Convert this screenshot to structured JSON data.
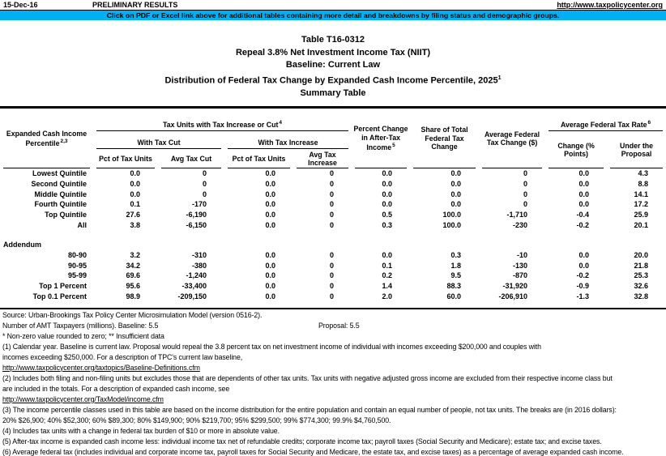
{
  "topbar": {
    "date": "15-Dec-16",
    "preliminary": "PRELIMINARY RESULTS",
    "url": "http://www.taxpolicycenter.org"
  },
  "banner": {
    "text": "Click on PDF or Excel link above for additional tables containing more detail and breakdowns by filing status and demographic groups.",
    "color": "#00B0F0"
  },
  "title": {
    "line1": "Table T16-0312",
    "line2": "Repeal 3.8% Net Investment Income Tax (NIIT)",
    "line3": "Baseline: Current Law",
    "line4": "Distribution of Federal Tax Change by Expanded Cash Income Percentile, 2025",
    "line4_sup": "1",
    "line5": "Summary Table"
  },
  "table": {
    "stub_header": "Expanded Cash Income Percentile",
    "stub_sup": "2,3",
    "group1": "Tax Units with Tax Increase or Cut",
    "group1_sup": "4",
    "group1a": "With Tax Cut",
    "group1b": "With Tax Increase",
    "col_pct_units_cut": "Pct of Tax Units",
    "col_avg_cut": "Avg Tax Cut",
    "col_pct_units_inc": "Pct of Tax Units",
    "col_avg_inc": "Avg Tax Increase",
    "col_pct_change": "Percent Change in After-Tax Income",
    "col_pct_change_sup": "5",
    "col_share": "Share of Total Federal Tax Change",
    "col_avg_change": "Average Federal Tax Change ($)",
    "group2": "Average Federal Tax Rate",
    "group2_sup": "6",
    "col_rate_change": "Change (% Points)",
    "col_rate_under": "Under the Proposal",
    "rows": [
      {
        "label": "Lowest Quintile",
        "values": [
          "0.0",
          "0",
          "0.0",
          "0",
          "0.0",
          "0.0",
          "0",
          "0.0",
          "4.3"
        ]
      },
      {
        "label": "Second Quintile",
        "values": [
          "0.0",
          "0",
          "0.0",
          "0",
          "0.0",
          "0.0",
          "0",
          "0.0",
          "8.8"
        ]
      },
      {
        "label": "Middle Quintile",
        "values": [
          "0.0",
          "0",
          "0.0",
          "0",
          "0.0",
          "0.0",
          "0",
          "0.0",
          "14.1"
        ]
      },
      {
        "label": "Fourth Quintile",
        "values": [
          "0.1",
          "-170",
          "0.0",
          "0",
          "0.0",
          "0.0",
          "0",
          "0.0",
          "17.2"
        ]
      },
      {
        "label": "Top Quintile",
        "values": [
          "27.6",
          "-6,190",
          "0.0",
          "0",
          "0.5",
          "100.0",
          "-1,710",
          "-0.4",
          "25.9"
        ]
      },
      {
        "label": "All",
        "values": [
          "3.8",
          "-6,150",
          "0.0",
          "0",
          "0.3",
          "100.0",
          "-230",
          "-0.2",
          "20.1"
        ]
      }
    ],
    "addendum_label": "Addendum",
    "addendum_rows": [
      {
        "label": "80-90",
        "values": [
          "3.2",
          "-310",
          "0.0",
          "0",
          "0.0",
          "0.3",
          "-10",
          "0.0",
          "20.0"
        ]
      },
      {
        "label": "90-95",
        "values": [
          "34.2",
          "-380",
          "0.0",
          "0",
          "0.1",
          "1.8",
          "-130",
          "0.0",
          "21.8"
        ]
      },
      {
        "label": "95-99",
        "values": [
          "69.6",
          "-1,240",
          "0.0",
          "0",
          "0.2",
          "9.5",
          "-870",
          "-0.2",
          "25.3"
        ]
      },
      {
        "label": "Top 1 Percent",
        "values": [
          "95.6",
          "-33,400",
          "0.0",
          "0",
          "1.4",
          "88.3",
          "-31,920",
          "-0.9",
          "32.6"
        ]
      },
      {
        "label": "Top 0.1 Percent",
        "values": [
          "98.9",
          "-209,150",
          "0.0",
          "0",
          "2.0",
          "60.0",
          "-206,910",
          "-1.3",
          "32.8"
        ]
      }
    ]
  },
  "notes": {
    "source": "Source: Urban-Brookings Tax Policy Center Microsimulation Model (version 0516-2).",
    "amt": "Number of AMT Taxpayers (millions).  Baseline: 5.5",
    "amt_proposal": "Proposal: 5.5",
    "legend": "* Non-zero value rounded to zero; ** Insufficient data",
    "lines": [
      {
        "text": "(1) Calendar year. Baseline is current law. Proposal would repeal the 3.8 percent tax on net investment income of individual with incomes exceeding $200,000 and couples with"
      },
      {
        "text": "incomes exceeding $250,000. For a description of TPC's current law baseline,"
      },
      {
        "text": "http://www.taxpolicycenter.org/taxtopics/Baseline-Definitions.cfm",
        "link": true
      },
      {
        "text": "(2) Includes both filing and non-filing units but excludes those that are dependents of other tax units. Tax units with negative adjusted gross income are excluded from their respective income class but"
      },
      {
        "text": "are included in the totals. For a description of expanded cash income, see"
      },
      {
        "text": "http://www.taxpolicycenter.org/TaxModel/income.cfm",
        "link": true
      },
      {
        "text": "(3) The income percentile classes used in this table are based on the income distribution for the entire population and contain an equal number of people, not tax units. The breaks are (in 2016 dollars):"
      },
      {
        "text": "20% $26,900; 40% $52,300; 60% $89,300; 80% $149,900; 90% $219,700; 95% $299,500; 99% $774,300; 99.9% $4,760,500."
      },
      {
        "text": "(4) Includes tax units with a change in federal tax burden of $10 or more in absolute value."
      },
      {
        "text": "(5) After-tax income is expanded cash income less: individual income tax net of refundable credits; corporate income tax; payroll taxes (Social Security and Medicare); estate tax; and excise taxes."
      },
      {
        "text": "(6) Average federal tax (includes individual and corporate income tax, payroll taxes for Social Security and Medicare, the estate tax, and excise taxes) as a percentage of average expanded cash income."
      }
    ]
  }
}
